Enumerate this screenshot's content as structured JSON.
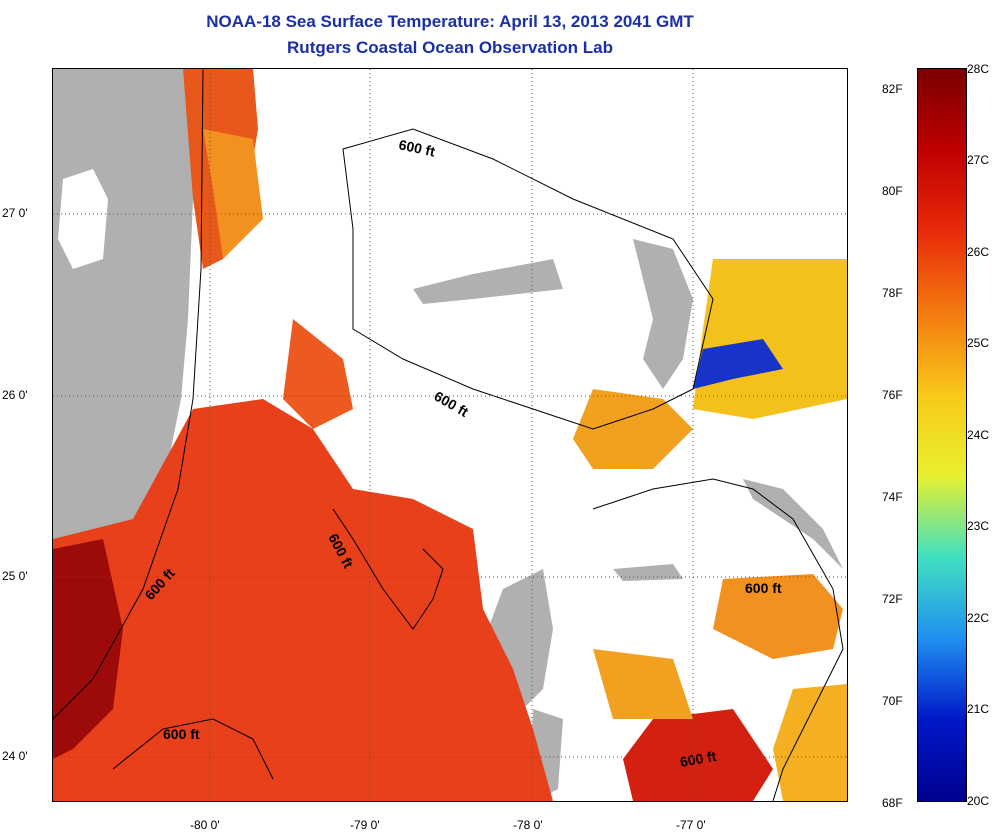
{
  "title_line1": "NOAA-18 Sea Surface Temperature:  April 13, 2013 2041 GMT",
  "title_line2": "Rutgers Coastal Ocean Observation Lab",
  "y_ticks": [
    "27 0'",
    "26 0'",
    "25 0'",
    "24 0'"
  ],
  "x_ticks": [
    "-80 0'",
    "-79 0'",
    "-78 0'",
    "-77 0'"
  ],
  "contour_labels": [
    "600 ft",
    "600 ft",
    "600 ft",
    "600 ft",
    "600 ft",
    "600 ft"
  ],
  "colorbar": {
    "fahrenheit": [
      "82F",
      "80F",
      "78F",
      "76F",
      "74F",
      "72F",
      "70F",
      "68F"
    ],
    "celsius": [
      "28C",
      "27C",
      "26C",
      "25C",
      "24C",
      "23C",
      "22C",
      "21C",
      "20C"
    ],
    "colors": [
      "#7a0000",
      "#c00000",
      "#e82a0a",
      "#f47a10",
      "#f8c81a",
      "#e8f030",
      "#40e0c0",
      "#2090f0",
      "#0018c8",
      "#00008c"
    ]
  }
}
